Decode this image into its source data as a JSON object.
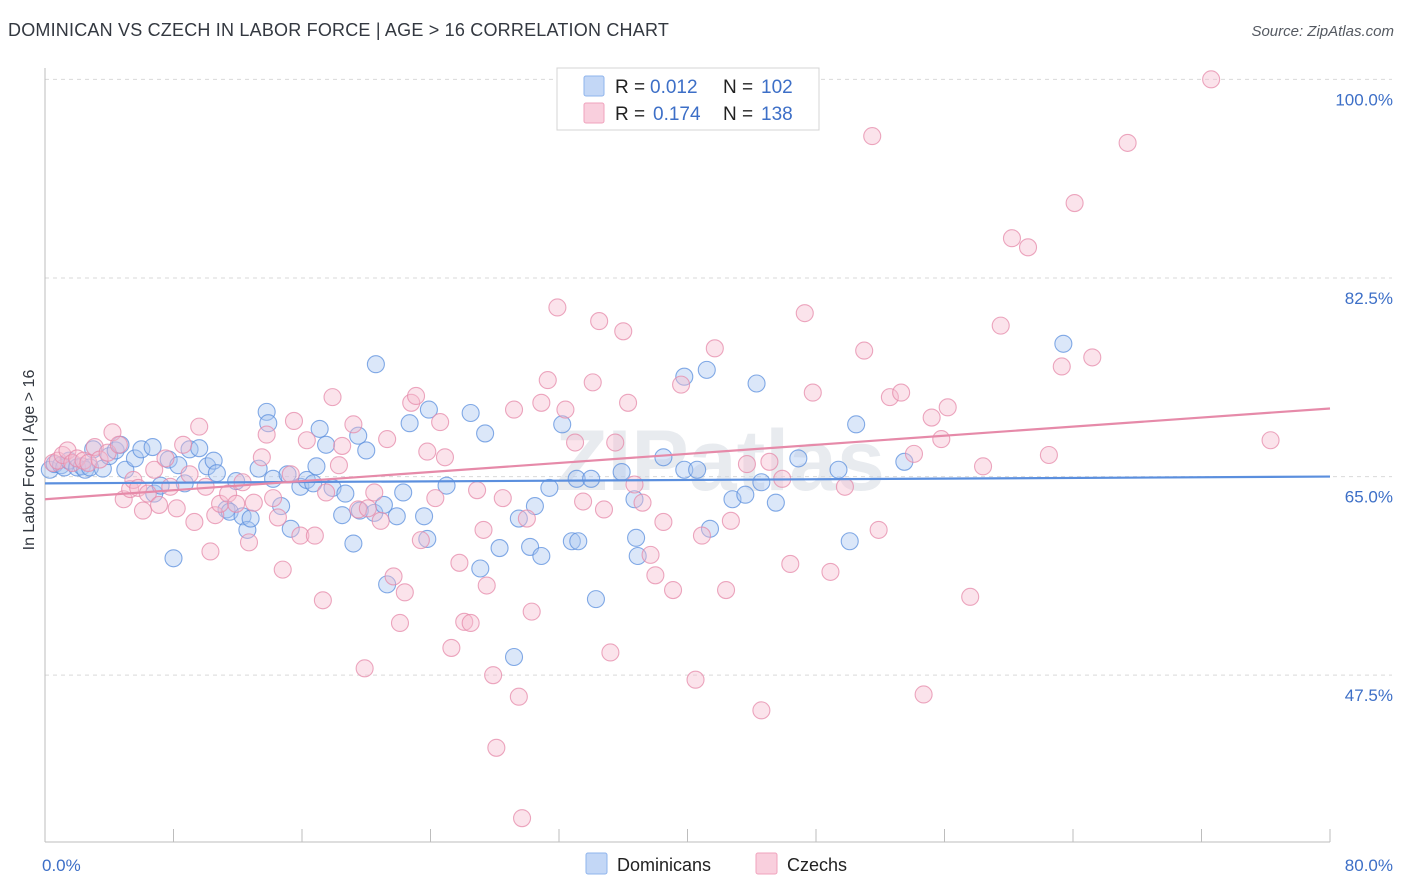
{
  "header": {
    "title": "DOMINICAN VS CZECH IN LABOR FORCE | AGE > 16 CORRELATION CHART",
    "source": "Source: ZipAtlas.com"
  },
  "legend": {
    "r_label": "R =",
    "n_label": "N =",
    "rows": [
      {
        "r": "0.012",
        "n": "102",
        "color": "#8fb4ec",
        "fill": "#c3d7f6"
      },
      {
        "r": "0.174",
        "n": "138",
        "color": "#f0a3bd",
        "fill": "#f9cfdd"
      }
    ]
  },
  "bottom_legend": [
    "Dominicans",
    "Czechs"
  ],
  "watermark": "ZIPatlas",
  "chart_data": {
    "type": "scatter",
    "xlabel": "",
    "ylabel": "In Labor Force | Age > 16",
    "xlim": [
      0,
      80
    ],
    "ylim": [
      32.8,
      101
    ],
    "x_tick_labels": [
      {
        "value": 0,
        "label": "0.0%"
      },
      {
        "value": 80,
        "label": "80.0%"
      }
    ],
    "y_ticks": [
      {
        "value": 100,
        "label": "100.0%"
      },
      {
        "value": 82.5,
        "label": "82.5%"
      },
      {
        "value": 65,
        "label": "65.0%"
      },
      {
        "value": 47.5,
        "label": "47.5%"
      }
    ],
    "grid": true,
    "series": [
      {
        "name": "Dominicans",
        "color": "#5b8fde",
        "fill": "#a9c6f1",
        "trend": {
          "x": [
            0,
            80
          ],
          "y": [
            64.4,
            65.0
          ]
        },
        "points": [
          [
            0.3,
            65.6
          ],
          [
            0.6,
            66.1
          ],
          [
            1.0,
            66.0
          ],
          [
            1.2,
            65.8
          ],
          [
            1.5,
            66.4
          ],
          [
            2.0,
            65.8
          ],
          [
            2.3,
            65.9
          ],
          [
            2.5,
            65.6
          ],
          [
            2.8,
            65.8
          ],
          [
            3.0,
            67.4
          ],
          [
            3.6,
            65.7
          ],
          [
            4.0,
            66.8
          ],
          [
            4.4,
            67.3
          ],
          [
            4.7,
            67.8
          ],
          [
            5.0,
            65.6
          ],
          [
            5.6,
            66.6
          ],
          [
            6.0,
            67.4
          ],
          [
            6.7,
            67.6
          ],
          [
            6.8,
            63.5
          ],
          [
            7.2,
            64.2
          ],
          [
            7.7,
            66.5
          ],
          [
            8.0,
            57.8
          ],
          [
            8.3,
            66.0
          ],
          [
            8.7,
            64.4
          ],
          [
            9.0,
            67.4
          ],
          [
            9.6,
            67.5
          ],
          [
            10.1,
            65.9
          ],
          [
            10.5,
            66.4
          ],
          [
            10.7,
            65.3
          ],
          [
            11.3,
            62.1
          ],
          [
            11.5,
            61.9
          ],
          [
            11.9,
            64.6
          ],
          [
            12.3,
            61.5
          ],
          [
            12.6,
            60.3
          ],
          [
            12.8,
            61.3
          ],
          [
            13.3,
            65.7
          ],
          [
            13.8,
            70.7
          ],
          [
            13.9,
            69.7
          ],
          [
            14.2,
            64.8
          ],
          [
            14.7,
            62.4
          ],
          [
            15.1,
            65.2
          ],
          [
            15.3,
            60.4
          ],
          [
            15.9,
            64.1
          ],
          [
            16.3,
            64.7
          ],
          [
            16.7,
            64.4
          ],
          [
            16.9,
            65.9
          ],
          [
            17.1,
            69.2
          ],
          [
            17.5,
            67.8
          ],
          [
            17.9,
            64.0
          ],
          [
            18.5,
            61.6
          ],
          [
            18.7,
            63.5
          ],
          [
            19.2,
            59.1
          ],
          [
            19.5,
            68.6
          ],
          [
            19.6,
            62.0
          ],
          [
            20.0,
            67.3
          ],
          [
            20.5,
            61.8
          ],
          [
            20.6,
            74.9
          ],
          [
            21.1,
            62.5
          ],
          [
            21.3,
            55.5
          ],
          [
            21.9,
            61.5
          ],
          [
            22.3,
            63.6
          ],
          [
            22.7,
            69.7
          ],
          [
            23.6,
            61.5
          ],
          [
            23.8,
            59.5
          ],
          [
            23.9,
            70.9
          ],
          [
            25.0,
            64.2
          ],
          [
            26.5,
            70.6
          ],
          [
            27.1,
            56.9
          ],
          [
            27.4,
            68.8
          ],
          [
            28.3,
            58.7
          ],
          [
            29.2,
            49.1
          ],
          [
            29.5,
            61.3
          ],
          [
            30.2,
            58.8
          ],
          [
            30.5,
            62.4
          ],
          [
            30.9,
            58.0
          ],
          [
            31.4,
            64.0
          ],
          [
            32.2,
            69.6
          ],
          [
            32.8,
            59.3
          ],
          [
            33.1,
            64.8
          ],
          [
            33.2,
            59.3
          ],
          [
            34.0,
            64.8
          ],
          [
            34.3,
            54.2
          ],
          [
            35.9,
            65.4
          ],
          [
            36.7,
            63.0
          ],
          [
            36.8,
            59.6
          ],
          [
            36.9,
            58.0
          ],
          [
            38.5,
            66.7
          ],
          [
            39.8,
            65.6
          ],
          [
            39.8,
            73.8
          ],
          [
            40.6,
            65.6
          ],
          [
            41.2,
            74.4
          ],
          [
            41.4,
            60.4
          ],
          [
            42.8,
            63.0
          ],
          [
            43.6,
            63.4
          ],
          [
            44.3,
            73.2
          ],
          [
            44.6,
            64.5
          ],
          [
            45.5,
            62.7
          ],
          [
            46.9,
            66.6
          ],
          [
            49.4,
            65.6
          ],
          [
            50.1,
            59.3
          ],
          [
            50.5,
            69.6
          ],
          [
            53.5,
            66.3
          ],
          [
            63.4,
            76.7
          ]
        ]
      },
      {
        "name": "Czechs",
        "color": "#e68aa9",
        "fill": "#f6bccf",
        "trend": {
          "x": [
            0,
            80
          ],
          "y": [
            63.0,
            71.0
          ]
        },
        "points": [
          [
            0.5,
            66.2
          ],
          [
            0.8,
            66.4
          ],
          [
            1.1,
            66.9
          ],
          [
            1.4,
            67.3
          ],
          [
            1.7,
            66.2
          ],
          [
            2.0,
            66.6
          ],
          [
            2.4,
            66.4
          ],
          [
            2.7,
            66.2
          ],
          [
            3.1,
            67.6
          ],
          [
            3.4,
            66.5
          ],
          [
            3.9,
            67.1
          ],
          [
            4.2,
            68.9
          ],
          [
            4.6,
            67.8
          ],
          [
            4.9,
            63.0
          ],
          [
            5.3,
            63.9
          ],
          [
            5.5,
            64.7
          ],
          [
            5.8,
            64.0
          ],
          [
            6.1,
            62.0
          ],
          [
            6.4,
            63.5
          ],
          [
            6.8,
            65.6
          ],
          [
            7.1,
            62.5
          ],
          [
            7.5,
            66.6
          ],
          [
            7.8,
            64.1
          ],
          [
            8.2,
            62.2
          ],
          [
            8.6,
            67.8
          ],
          [
            9.0,
            65.2
          ],
          [
            9.3,
            61.0
          ],
          [
            9.6,
            69.4
          ],
          [
            10.0,
            64.1
          ],
          [
            10.3,
            58.4
          ],
          [
            10.6,
            61.6
          ],
          [
            10.9,
            62.6
          ],
          [
            11.4,
            63.5
          ],
          [
            11.9,
            62.6
          ],
          [
            12.3,
            64.5
          ],
          [
            12.7,
            59.2
          ],
          [
            13.0,
            62.7
          ],
          [
            13.5,
            66.7
          ],
          [
            13.8,
            68.7
          ],
          [
            14.2,
            63.1
          ],
          [
            14.5,
            61.4
          ],
          [
            14.8,
            56.8
          ],
          [
            15.3,
            65.2
          ],
          [
            15.5,
            69.9
          ],
          [
            15.9,
            59.8
          ],
          [
            16.3,
            68.2
          ],
          [
            16.8,
            59.8
          ],
          [
            17.3,
            54.1
          ],
          [
            17.5,
            63.6
          ],
          [
            17.9,
            72.0
          ],
          [
            18.3,
            66.0
          ],
          [
            18.5,
            67.7
          ],
          [
            19.2,
            69.6
          ],
          [
            19.5,
            62.1
          ],
          [
            19.9,
            48.1
          ],
          [
            20.1,
            62.2
          ],
          [
            20.5,
            63.6
          ],
          [
            20.9,
            61.1
          ],
          [
            21.3,
            68.3
          ],
          [
            21.7,
            56.2
          ],
          [
            22.1,
            52.1
          ],
          [
            22.4,
            54.8
          ],
          [
            22.8,
            71.5
          ],
          [
            23.1,
            72.1
          ],
          [
            23.4,
            59.4
          ],
          [
            23.8,
            67.2
          ],
          [
            24.3,
            63.1
          ],
          [
            24.6,
            69.8
          ],
          [
            24.9,
            66.7
          ],
          [
            25.3,
            49.9
          ],
          [
            25.8,
            57.4
          ],
          [
            26.1,
            52.2
          ],
          [
            26.5,
            52.1
          ],
          [
            26.9,
            63.8
          ],
          [
            27.3,
            60.3
          ],
          [
            27.5,
            55.4
          ],
          [
            27.9,
            47.5
          ],
          [
            28.1,
            41.1
          ],
          [
            28.5,
            63.1
          ],
          [
            29.2,
            70.9
          ],
          [
            29.5,
            45.6
          ],
          [
            29.7,
            34.9
          ],
          [
            30.0,
            61.3
          ],
          [
            30.3,
            53.1
          ],
          [
            30.9,
            71.5
          ],
          [
            31.3,
            73.5
          ],
          [
            31.9,
            79.9
          ],
          [
            32.4,
            70.9
          ],
          [
            33.0,
            68.0
          ],
          [
            33.5,
            62.8
          ],
          [
            34.1,
            73.3
          ],
          [
            34.5,
            78.7
          ],
          [
            34.8,
            62.1
          ],
          [
            35.2,
            49.5
          ],
          [
            35.5,
            68.0
          ],
          [
            36.0,
            77.8
          ],
          [
            36.3,
            71.5
          ],
          [
            36.7,
            64.3
          ],
          [
            37.2,
            62.7
          ],
          [
            37.7,
            58.1
          ],
          [
            38.0,
            56.3
          ],
          [
            38.5,
            61.0
          ],
          [
            39.1,
            55.0
          ],
          [
            39.6,
            73.1
          ],
          [
            40.5,
            47.1
          ],
          [
            40.9,
            59.8
          ],
          [
            41.7,
            76.3
          ],
          [
            42.4,
            55.0
          ],
          [
            42.7,
            61.1
          ],
          [
            43.7,
            66.1
          ],
          [
            44.6,
            44.4
          ],
          [
            45.1,
            66.3
          ],
          [
            45.9,
            64.8
          ],
          [
            46.4,
            57.3
          ],
          [
            47.3,
            79.4
          ],
          [
            47.8,
            72.4
          ],
          [
            48.9,
            56.6
          ],
          [
            49.8,
            64.1
          ],
          [
            51.0,
            76.1
          ],
          [
            51.5,
            95.0
          ],
          [
            51.9,
            60.3
          ],
          [
            52.6,
            72.0
          ],
          [
            53.3,
            72.4
          ],
          [
            54.1,
            67.0
          ],
          [
            54.7,
            45.8
          ],
          [
            55.2,
            70.2
          ],
          [
            55.8,
            68.3
          ],
          [
            56.2,
            71.1
          ],
          [
            57.6,
            54.4
          ],
          [
            58.4,
            65.9
          ],
          [
            59.5,
            78.3
          ],
          [
            60.2,
            86.0
          ],
          [
            61.2,
            85.2
          ],
          [
            62.5,
            66.9
          ],
          [
            63.3,
            74.7
          ],
          [
            64.1,
            89.1
          ],
          [
            65.2,
            75.5
          ],
          [
            67.4,
            94.4
          ],
          [
            72.6,
            100.0
          ],
          [
            76.3,
            68.2
          ]
        ]
      }
    ]
  }
}
